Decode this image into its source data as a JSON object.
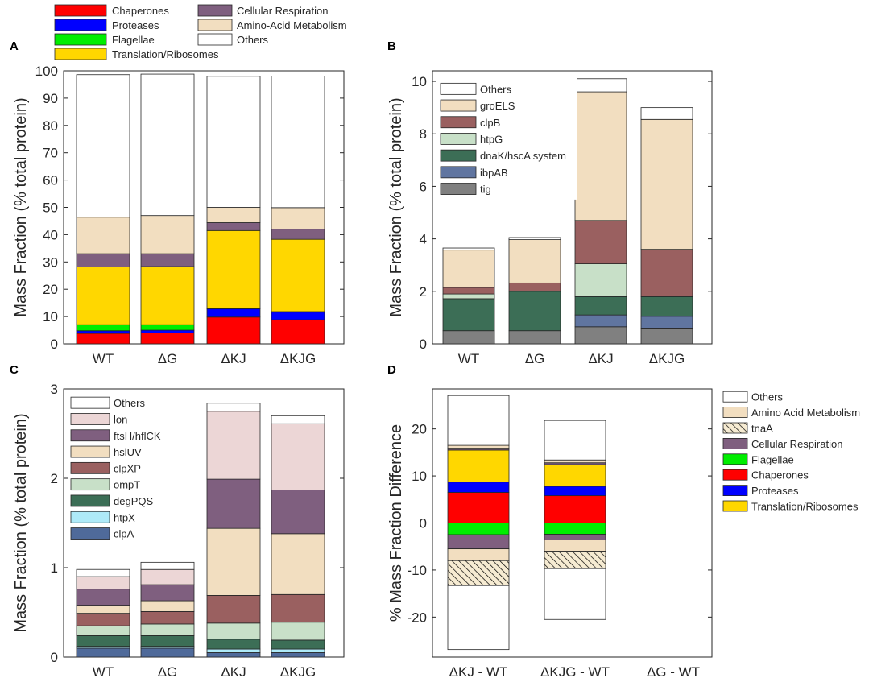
{
  "top_legend": {
    "col1": [
      "Chaperones",
      "Proteases",
      "Flagellae",
      "Translation/Ribosomes"
    ],
    "col2": [
      "Cellular Respiration",
      "Amino-Acid Metabolism",
      "Others"
    ]
  },
  "colors": {
    "Chaperones": "#ff0000",
    "Proteases": "#0000ff",
    "Flagellae": "#00ee00",
    "Translation/Ribosomes": "#ffd700",
    "Cellular Respiration": "#7f5f7f",
    "Amino-Acid Metabolism": "#f2dec0",
    "Amino Acid Metabolism": "#f2dec0",
    "Others": "#ffffff",
    "tnaA": "hatch",
    "groELS": "#f2dec0",
    "clpB": "#9a6060",
    "htpG": "#c8e0c8",
    "dnaK/hscA system": "#3c6e56",
    "ibpAB": "#6075a0",
    "tig": "#808080",
    "lon": "#ecd6d6",
    "ftsH/hflCK": "#7f5f7f",
    "hslUV": "#f2dec0",
    "clpXP": "#9a6060",
    "ompT": "#c8e0c8",
    "degPQS": "#3c6e56",
    "htpX": "#aeeaf8",
    "clpA": "#4f6a9a"
  },
  "chart_data": [
    {
      "panel": "A",
      "type": "bar",
      "stacked": true,
      "categories": [
        "WT",
        "ΔG",
        "ΔKJ",
        "ΔKJG"
      ],
      "ylabel": "Mass Fraction (% total protein)",
      "ylim": [
        0,
        100
      ],
      "yticks": [
        0,
        10,
        20,
        30,
        40,
        50,
        60,
        70,
        80,
        90,
        100
      ],
      "series": [
        {
          "name": "Chaperones",
          "values": [
            3.8,
            4.0,
            9.8,
            8.8
          ]
        },
        {
          "name": "Proteases",
          "values": [
            1.0,
            1.0,
            3.0,
            2.8
          ]
        },
        {
          "name": "Flagellae",
          "values": [
            2.2,
            2.0,
            0.2,
            0.2
          ]
        },
        {
          "name": "Translation/Ribosomes",
          "values": [
            21.2,
            21.3,
            28.5,
            26.5
          ]
        },
        {
          "name": "Cellular Respiration",
          "values": [
            4.8,
            4.7,
            2.9,
            3.7
          ]
        },
        {
          "name": "Amino-Acid Metabolism",
          "values": [
            13.4,
            14.0,
            5.6,
            7.9
          ]
        },
        {
          "name": "Others",
          "values": [
            52.2,
            51.8,
            48.0,
            48.2
          ]
        }
      ]
    },
    {
      "panel": "B",
      "type": "bar",
      "stacked": true,
      "categories": [
        "WT",
        "ΔG",
        "ΔKJ",
        "ΔKJG"
      ],
      "ylabel": "Mass Fraction (% total protein)",
      "ylim": [
        0,
        10.4
      ],
      "yticks": [
        0,
        2,
        4,
        6,
        8,
        10
      ],
      "legend": [
        "Others",
        "groELS",
        "clpB",
        "htpG",
        "dnaK/hscA system",
        "ibpAB",
        "tig"
      ],
      "series": [
        {
          "name": "tig",
          "values": [
            0.5,
            0.5,
            0.65,
            0.6
          ]
        },
        {
          "name": "ibpAB",
          "values": [
            0.0,
            0.0,
            0.45,
            0.45
          ]
        },
        {
          "name": "dnaK/hscA system",
          "values": [
            1.22,
            1.5,
            0.7,
            0.75
          ]
        },
        {
          "name": "htpG",
          "values": [
            0.18,
            0.0,
            1.25,
            0.0
          ]
        },
        {
          "name": "clpB",
          "values": [
            0.25,
            0.32,
            1.65,
            1.8
          ]
        },
        {
          "name": "groELS",
          "values": [
            1.42,
            1.65,
            4.9,
            4.95
          ]
        },
        {
          "name": "Others",
          "values": [
            0.08,
            0.08,
            0.5,
            0.45
          ]
        }
      ]
    },
    {
      "panel": "C",
      "type": "bar",
      "stacked": true,
      "categories": [
        "WT",
        "ΔG",
        "ΔKJ",
        "ΔKJG"
      ],
      "ylabel": "Mass Fraction (% total protein)",
      "ylim": [
        0,
        3
      ],
      "yticks": [
        0,
        1,
        2,
        3
      ],
      "legend": [
        "Others",
        "lon",
        "ftsH/hflCK",
        "hslUV",
        "clpXP",
        "ompT",
        "degPQS",
        "htpX",
        "clpA"
      ],
      "series": [
        {
          "name": "clpA",
          "values": [
            0.1,
            0.1,
            0.05,
            0.05
          ]
        },
        {
          "name": "htpX",
          "values": [
            0.02,
            0.02,
            0.04,
            0.04
          ]
        },
        {
          "name": "degPQS",
          "values": [
            0.12,
            0.12,
            0.11,
            0.1
          ]
        },
        {
          "name": "ompT",
          "values": [
            0.11,
            0.13,
            0.18,
            0.2
          ]
        },
        {
          "name": "clpXP",
          "values": [
            0.14,
            0.14,
            0.31,
            0.31
          ]
        },
        {
          "name": "hslUV",
          "values": [
            0.09,
            0.12,
            0.75,
            0.68
          ]
        },
        {
          "name": "ftsH/hflCK",
          "values": [
            0.18,
            0.18,
            0.55,
            0.49
          ]
        },
        {
          "name": "lon",
          "values": [
            0.14,
            0.17,
            0.76,
            0.74
          ]
        },
        {
          "name": "Others",
          "values": [
            0.08,
            0.08,
            0.09,
            0.09
          ]
        }
      ]
    },
    {
      "panel": "D",
      "type": "bar",
      "stacked": true,
      "diverging": true,
      "categories": [
        "ΔKJ - WT",
        "ΔKJG - WT",
        "ΔG - WT"
      ],
      "ylabel": "% Mass Fraction Difference",
      "ylim": [
        -28.5,
        28.5
      ],
      "yticks": [
        -20,
        -10,
        0,
        10,
        20
      ],
      "yticklabels": [
        "-20",
        "-10",
        "0",
        "10",
        "20"
      ],
      "legend": [
        "Others",
        "Amino Acid Metabolism",
        "tnaA",
        "Cellular Respiration",
        "Flagellae",
        "Chaperones",
        "Proteases",
        "Translation/Ribosomes"
      ],
      "positive": [
        {
          "name": "Chaperones",
          "values": [
            6.5,
            5.8,
            0
          ]
        },
        {
          "name": "Proteases",
          "values": [
            2.2,
            2.0,
            0
          ]
        },
        {
          "name": "Translation/Ribosomes",
          "values": [
            6.8,
            4.6,
            0
          ]
        },
        {
          "name": "Cellular Respiration",
          "values": [
            0.4,
            0.4,
            0
          ]
        },
        {
          "name": "Amino Acid Metabolism",
          "values": [
            0.6,
            0.6,
            0
          ]
        },
        {
          "name": "Others",
          "values": [
            10.6,
            8.4,
            0
          ]
        }
      ],
      "negative": [
        {
          "name": "Flagellae",
          "values": [
            -2.5,
            -2.4,
            0
          ]
        },
        {
          "name": "Cellular Respiration",
          "values": [
            -3.0,
            -1.2,
            0
          ]
        },
        {
          "name": "Amino Acid Metabolism",
          "values": [
            -2.5,
            -2.4,
            0
          ]
        },
        {
          "name": "tnaA",
          "values": [
            -5.3,
            -3.7,
            0
          ]
        },
        {
          "name": "Others",
          "values": [
            -13.6,
            -10.8,
            0
          ]
        }
      ]
    }
  ]
}
